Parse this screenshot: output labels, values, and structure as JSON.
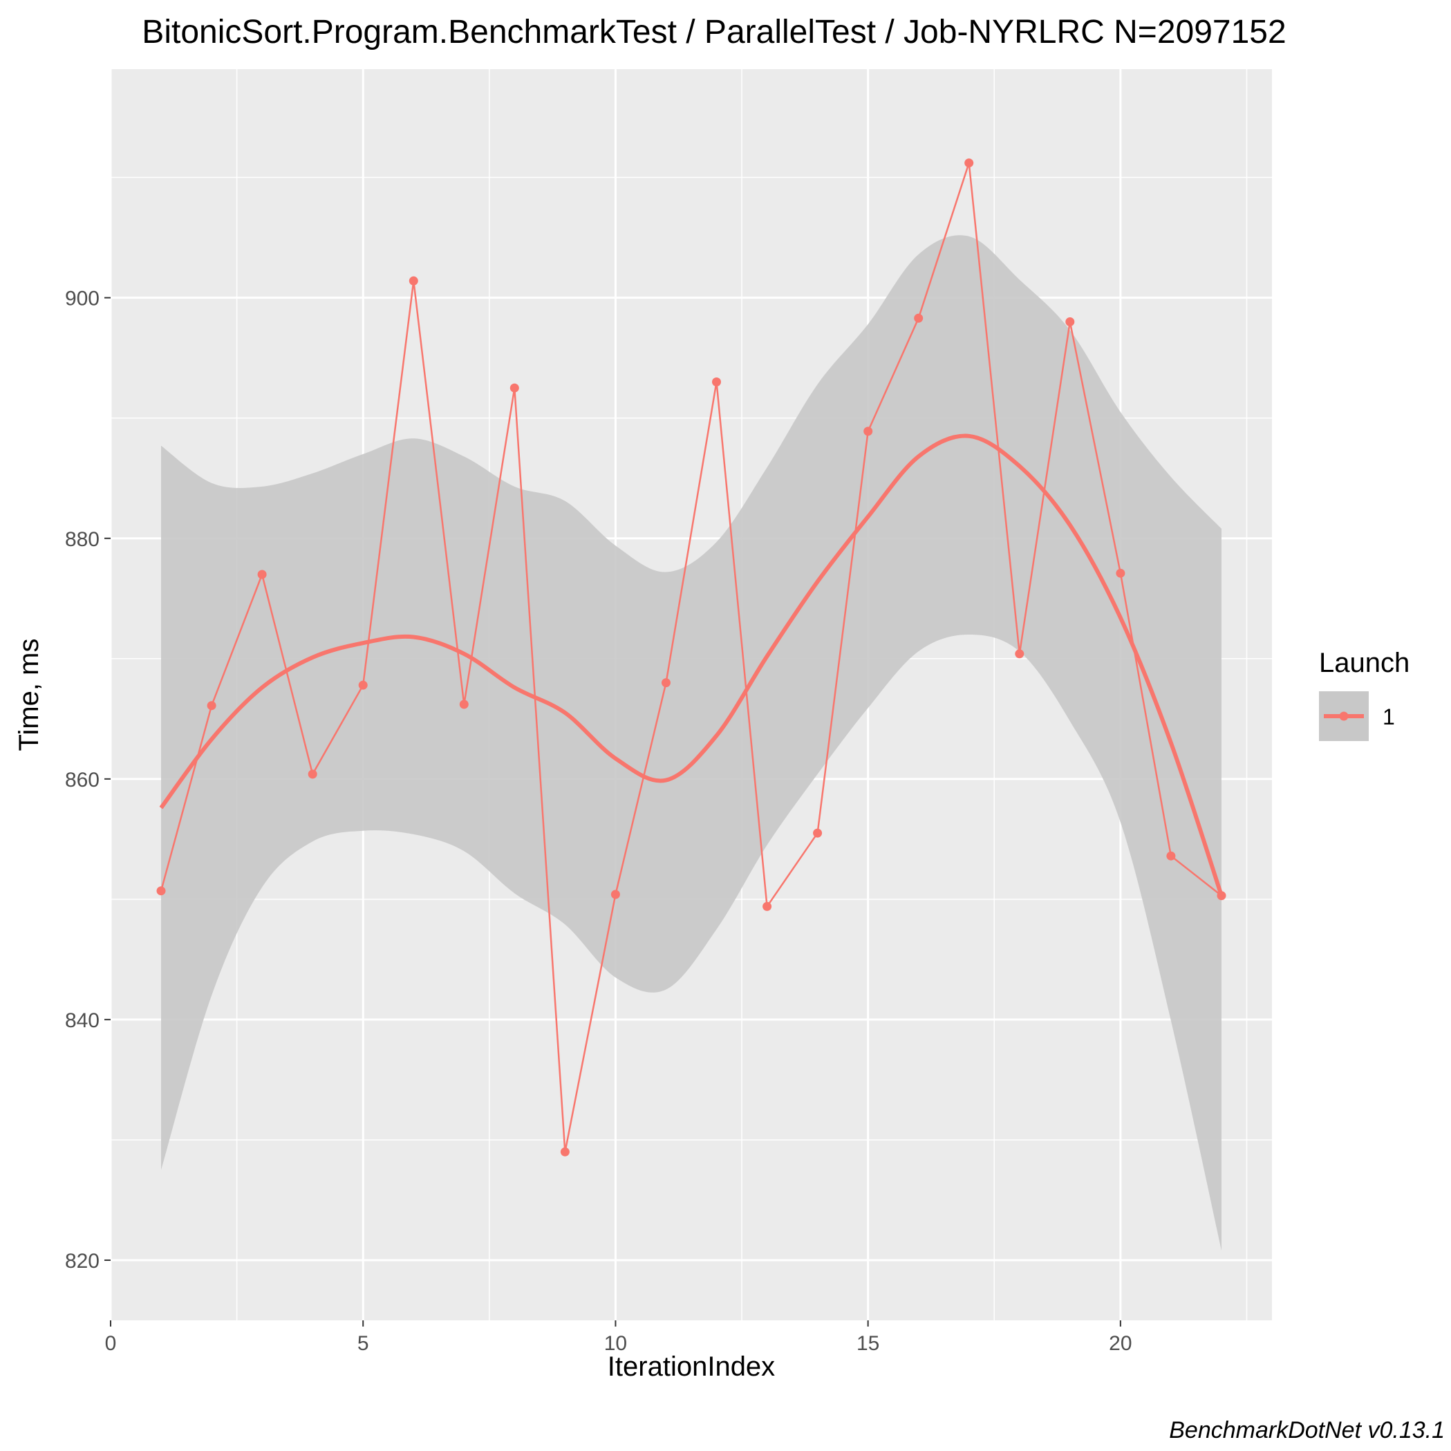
{
  "chart_data": {
    "type": "line",
    "title": "BitonicSort.Program.BenchmarkTest / ParallelTest / Job-NYRLRC N=2097152",
    "xlabel": "IterationIndex",
    "ylabel": "Time, ms",
    "caption": "BenchmarkDotNet v0.13.1",
    "xlim": [
      0,
      23
    ],
    "ylim": [
      815,
      919
    ],
    "xticks": [
      0,
      5,
      10,
      15,
      20
    ],
    "yticks": [
      820,
      840,
      860,
      880,
      900
    ],
    "grid": true,
    "legend": {
      "title": "Launch",
      "position": "right",
      "entries": [
        "1"
      ]
    },
    "colors": {
      "series": "#f8766d",
      "ribbon": "#c8c8c8",
      "panel": "#ebebeb",
      "grid": "#ffffff"
    },
    "series": [
      {
        "name": "1",
        "x": [
          1,
          2,
          3,
          4,
          5,
          6,
          7,
          8,
          9,
          10,
          11,
          12,
          13,
          14,
          15,
          16,
          17,
          18,
          19,
          20,
          21,
          22
        ],
        "values": [
          850.7,
          866.1,
          877.0,
          860.4,
          867.8,
          901.4,
          866.2,
          892.5,
          829.0,
          850.4,
          868.0,
          893.0,
          849.4,
          855.5,
          888.9,
          898.3,
          911.2,
          870.4,
          898.0,
          877.1,
          853.6,
          850.3
        ]
      }
    ],
    "smooth": {
      "x": [
        1,
        2,
        3,
        4,
        5,
        6,
        7,
        8,
        9,
        10,
        11,
        12,
        13,
        14,
        15,
        16,
        17,
        18,
        19,
        20,
        21,
        22
      ],
      "values": [
        857.6,
        863.3,
        867.6,
        870.1,
        871.3,
        871.8,
        870.4,
        867.6,
        865.5,
        861.7,
        859.9,
        863.6,
        870.2,
        876.4,
        881.8,
        886.8,
        888.5,
        886.0,
        881.1,
        873.4,
        863.0,
        850.3
      ],
      "lower": [
        827.5,
        842.0,
        851.0,
        854.8,
        855.7,
        855.4,
        854.0,
        850.5,
        847.9,
        843.5,
        842.5,
        847.5,
        854.5,
        860.4,
        865.9,
        870.6,
        872.0,
        870.6,
        864.8,
        856.4,
        839.9,
        820.8
      ],
      "upper": [
        887.7,
        884.6,
        884.3,
        885.4,
        887.0,
        888.3,
        886.8,
        884.3,
        883.1,
        879.4,
        877.2,
        879.7,
        885.9,
        892.8,
        897.8,
        903.6,
        905.1,
        901.5,
        897.3,
        890.5,
        885.1,
        880.8
      ]
    }
  }
}
